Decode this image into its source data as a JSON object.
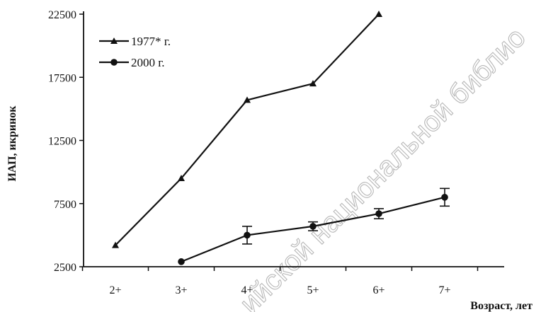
{
  "chart_data": {
    "type": "line",
    "xlabel": "Возраст, лет",
    "ylabel": "ИАП, икринок",
    "categories": [
      "2+",
      "3+",
      "4+",
      "5+",
      "6+",
      "7+"
    ],
    "ylim": [
      2500,
      22500
    ],
    "yticks": [
      2500,
      7500,
      12500,
      17500,
      22500
    ],
    "ytick_labels": [
      "2500",
      "7500",
      "12500",
      "17500",
      "22500"
    ],
    "grid": false,
    "legend_position": "top-left",
    "series": [
      {
        "name": "1977* г.",
        "marker": "triangle",
        "values": [
          4200,
          9500,
          15700,
          17000,
          22500,
          null
        ]
      },
      {
        "name": "2000 г.",
        "marker": "circle",
        "values": [
          null,
          2900,
          5000,
          5700,
          6700,
          8000
        ],
        "error": [
          null,
          0,
          700,
          350,
          400,
          700
        ]
      }
    ],
    "watermark": "ийской национальной библио"
  }
}
